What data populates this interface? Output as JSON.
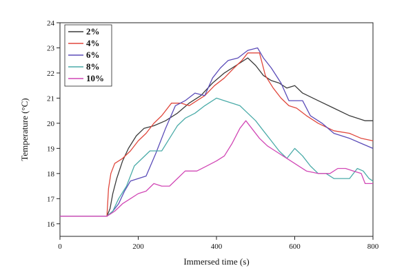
{
  "chart_data": {
    "type": "line",
    "title": "",
    "xlabel": "Immersed time (s)",
    "ylabel": "Temperature (°C)",
    "xlim": [
      0,
      800
    ],
    "ylim": [
      15.5,
      24
    ],
    "xticks": [
      0,
      200,
      400,
      600,
      800
    ],
    "yticks": [
      16,
      17,
      18,
      19,
      20,
      21,
      22,
      23,
      24
    ],
    "grid": false,
    "legend_position": "top-left",
    "series": [
      {
        "name": "2%",
        "color": "#3a3a3a",
        "points": [
          [
            0,
            16.3
          ],
          [
            120,
            16.3
          ],
          [
            128,
            16.6
          ],
          [
            135,
            17.2
          ],
          [
            145,
            17.8
          ],
          [
            160,
            18.5
          ],
          [
            175,
            19.0
          ],
          [
            195,
            19.5
          ],
          [
            215,
            19.8
          ],
          [
            240,
            19.9
          ],
          [
            270,
            20.1
          ],
          [
            300,
            20.4
          ],
          [
            330,
            20.8
          ],
          [
            360,
            21.1
          ],
          [
            390,
            21.6
          ],
          [
            420,
            22.0
          ],
          [
            450,
            22.3
          ],
          [
            480,
            22.6
          ],
          [
            500,
            22.3
          ],
          [
            520,
            21.9
          ],
          [
            540,
            21.7
          ],
          [
            560,
            21.6
          ],
          [
            580,
            21.4
          ],
          [
            600,
            21.5
          ],
          [
            620,
            21.2
          ],
          [
            660,
            20.9
          ],
          [
            700,
            20.6
          ],
          [
            740,
            20.3
          ],
          [
            780,
            20.1
          ],
          [
            800,
            20.1
          ]
        ]
      },
      {
        "name": "4%",
        "color": "#e0473c",
        "points": [
          [
            0,
            16.3
          ],
          [
            120,
            16.3
          ],
          [
            124,
            17.4
          ],
          [
            130,
            18.0
          ],
          [
            140,
            18.4
          ],
          [
            160,
            18.6
          ],
          [
            180,
            18.9
          ],
          [
            200,
            19.3
          ],
          [
            220,
            19.6
          ],
          [
            240,
            20.0
          ],
          [
            260,
            20.3
          ],
          [
            285,
            20.8
          ],
          [
            310,
            20.8
          ],
          [
            330,
            20.7
          ],
          [
            350,
            20.9
          ],
          [
            370,
            21.1
          ],
          [
            395,
            21.5
          ],
          [
            420,
            21.8
          ],
          [
            445,
            22.2
          ],
          [
            465,
            22.5
          ],
          [
            480,
            22.8
          ],
          [
            510,
            22.8
          ],
          [
            525,
            21.9
          ],
          [
            545,
            21.4
          ],
          [
            565,
            21.0
          ],
          [
            585,
            20.7
          ],
          [
            605,
            20.6
          ],
          [
            630,
            20.3
          ],
          [
            660,
            20.0
          ],
          [
            700,
            19.7
          ],
          [
            740,
            19.6
          ],
          [
            770,
            19.4
          ],
          [
            800,
            19.3
          ]
        ]
      },
      {
        "name": "6%",
        "color": "#5a4bb8",
        "points": [
          [
            0,
            16.3
          ],
          [
            120,
            16.3
          ],
          [
            135,
            16.5
          ],
          [
            150,
            16.8
          ],
          [
            165,
            17.3
          ],
          [
            180,
            17.7
          ],
          [
            200,
            17.8
          ],
          [
            220,
            17.9
          ],
          [
            245,
            18.8
          ],
          [
            270,
            19.8
          ],
          [
            295,
            20.7
          ],
          [
            320,
            20.9
          ],
          [
            345,
            21.2
          ],
          [
            370,
            21.1
          ],
          [
            390,
            21.8
          ],
          [
            410,
            22.2
          ],
          [
            430,
            22.5
          ],
          [
            455,
            22.6
          ],
          [
            480,
            22.9
          ],
          [
            505,
            23.0
          ],
          [
            520,
            22.6
          ],
          [
            540,
            22.2
          ],
          [
            565,
            21.6
          ],
          [
            585,
            20.9
          ],
          [
            600,
            20.9
          ],
          [
            620,
            20.9
          ],
          [
            640,
            20.3
          ],
          [
            670,
            20.0
          ],
          [
            700,
            19.6
          ],
          [
            740,
            19.4
          ],
          [
            770,
            19.2
          ],
          [
            800,
            19.0
          ]
        ]
      },
      {
        "name": "8%",
        "color": "#4aaba8",
        "points": [
          [
            0,
            16.3
          ],
          [
            120,
            16.3
          ],
          [
            135,
            16.5
          ],
          [
            150,
            17.0
          ],
          [
            170,
            17.5
          ],
          [
            190,
            18.3
          ],
          [
            210,
            18.6
          ],
          [
            230,
            18.9
          ],
          [
            260,
            18.9
          ],
          [
            280,
            19.4
          ],
          [
            300,
            19.9
          ],
          [
            320,
            20.2
          ],
          [
            345,
            20.4
          ],
          [
            370,
            20.7
          ],
          [
            400,
            21.0
          ],
          [
            420,
            20.9
          ],
          [
            440,
            20.8
          ],
          [
            460,
            20.7
          ],
          [
            480,
            20.4
          ],
          [
            500,
            20.1
          ],
          [
            520,
            19.7
          ],
          [
            540,
            19.3
          ],
          [
            560,
            18.9
          ],
          [
            580,
            18.6
          ],
          [
            600,
            19.0
          ],
          [
            620,
            18.7
          ],
          [
            640,
            18.3
          ],
          [
            660,
            18.0
          ],
          [
            680,
            18.0
          ],
          [
            700,
            17.8
          ],
          [
            720,
            17.8
          ],
          [
            740,
            17.8
          ],
          [
            760,
            18.2
          ],
          [
            775,
            18.1
          ],
          [
            790,
            17.8
          ],
          [
            800,
            17.7
          ]
        ]
      },
      {
        "name": "10%",
        "color": "#d147b5",
        "points": [
          [
            0,
            16.3
          ],
          [
            120,
            16.3
          ],
          [
            140,
            16.5
          ],
          [
            160,
            16.8
          ],
          [
            180,
            17.0
          ],
          [
            200,
            17.2
          ],
          [
            220,
            17.3
          ],
          [
            240,
            17.6
          ],
          [
            260,
            17.5
          ],
          [
            280,
            17.5
          ],
          [
            300,
            17.8
          ],
          [
            320,
            18.1
          ],
          [
            350,
            18.1
          ],
          [
            375,
            18.3
          ],
          [
            400,
            18.5
          ],
          [
            420,
            18.7
          ],
          [
            440,
            19.2
          ],
          [
            460,
            19.8
          ],
          [
            475,
            20.1
          ],
          [
            490,
            19.8
          ],
          [
            510,
            19.4
          ],
          [
            530,
            19.1
          ],
          [
            550,
            18.9
          ],
          [
            570,
            18.7
          ],
          [
            590,
            18.5
          ],
          [
            610,
            18.3
          ],
          [
            630,
            18.1
          ],
          [
            660,
            18.0
          ],
          [
            690,
            18.0
          ],
          [
            710,
            18.2
          ],
          [
            730,
            18.2
          ],
          [
            750,
            18.1
          ],
          [
            770,
            18.0
          ],
          [
            780,
            17.6
          ],
          [
            800,
            17.6
          ]
        ]
      }
    ]
  }
}
